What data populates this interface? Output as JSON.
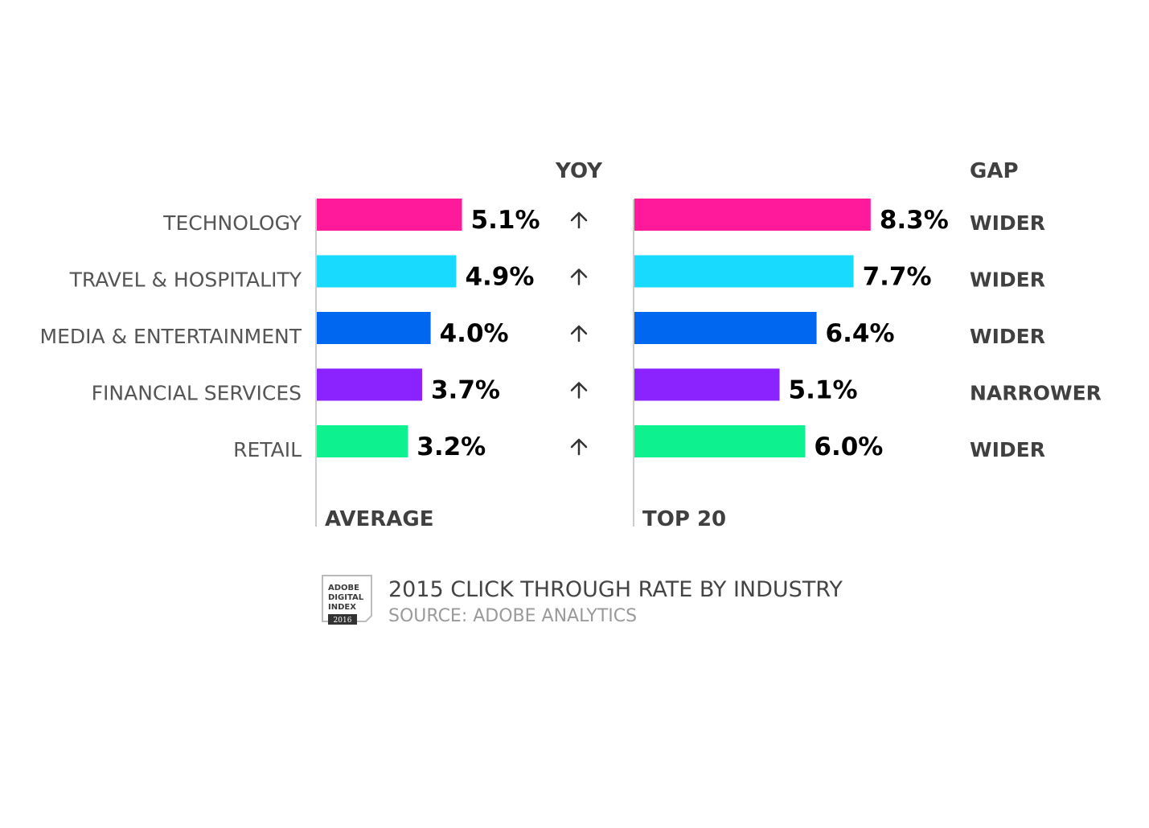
{
  "chart_data": {
    "type": "bar",
    "title": "2015 CLICK THROUGH RATE BY INDUSTRY",
    "source": "SOURCE: ADOBE ANALYTICS",
    "categories": [
      "TECHNOLOGY",
      "TRAVEL & HOSPITALITY",
      "MEDIA & ENTERTAINMENT",
      "FINANCIAL SERVICES",
      "RETAIL"
    ],
    "colors": [
      "#ff1a9c",
      "#18d9ff",
      "#0068f0",
      "#8a23ff",
      "#0df28f"
    ],
    "series": [
      {
        "name": "AVERAGE",
        "values": [
          5.1,
          4.9,
          4.0,
          3.7,
          3.2
        ],
        "labels": [
          "5.1%",
          "4.9%",
          "4.0%",
          "3.7%",
          "3.2%"
        ]
      },
      {
        "name": "TOP 20",
        "values": [
          8.3,
          7.7,
          6.4,
          5.1,
          6.0
        ],
        "labels": [
          "8.3%",
          "7.7%",
          "6.4%",
          "5.1%",
          "6.0%"
        ]
      }
    ],
    "yoy_header": "YOY",
    "yoy": [
      "up",
      "up",
      "up",
      "up",
      "up"
    ],
    "gap_header": "GAP",
    "gap": [
      "WIDER",
      "WIDER",
      "WIDER",
      "NARROWER",
      "WIDER"
    ],
    "value_unit": "%"
  },
  "logo": {
    "lines": [
      "ADOBE",
      "DIGITAL",
      "INDEX"
    ],
    "year": "2016"
  }
}
